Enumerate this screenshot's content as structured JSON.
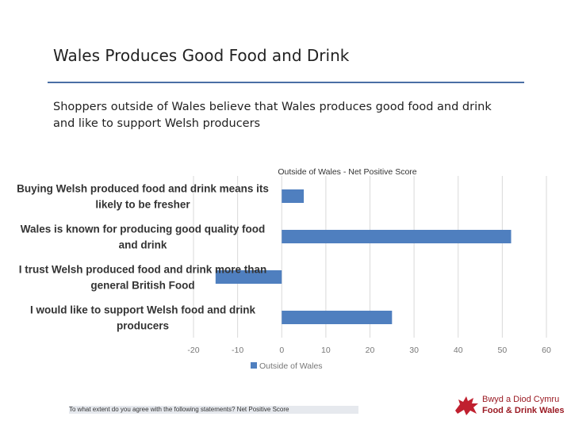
{
  "slide": {
    "title": "Wales Produces Good Food and Drink",
    "subtitle": "Shoppers outside of Wales believe that Wales produces good food and drink and like to support Welsh producers",
    "footnote": "To what extent do you agree with the following statements? Net Positive Score"
  },
  "logo": {
    "line1": "Bwyd a Diod Cymru",
    "line2": "Food & Drink Wales",
    "color": "#c0202f"
  },
  "chart_data": {
    "type": "bar",
    "orientation": "horizontal",
    "title": "Outside of Wales - Net Positive Score",
    "categories": [
      "Buying Welsh produced food and drink means its likely to be fresher",
      "Wales is known for producing good quality food and drink",
      "I trust Welsh produced food and drink more than general British Food",
      "I would like to support Welsh food and drink producers"
    ],
    "category_lines": [
      [
        "Buying Welsh produced food and drink means its",
        "likely to be fresher"
      ],
      [
        "Wales is known for producing good quality food",
        "and drink"
      ],
      [
        "I trust Welsh produced food and drink more than",
        "general British Food"
      ],
      [
        "I would like to support Welsh food and drink",
        "producers"
      ]
    ],
    "series": [
      {
        "name": "Outside of Wales",
        "values": [
          5,
          52,
          -15,
          25
        ],
        "color": "#4f7fbf"
      }
    ],
    "xlim": [
      -20,
      60
    ],
    "xticks": [
      -20,
      -10,
      0,
      10,
      20,
      30,
      40,
      50,
      60
    ],
    "grid": true,
    "legend": "bottom"
  }
}
